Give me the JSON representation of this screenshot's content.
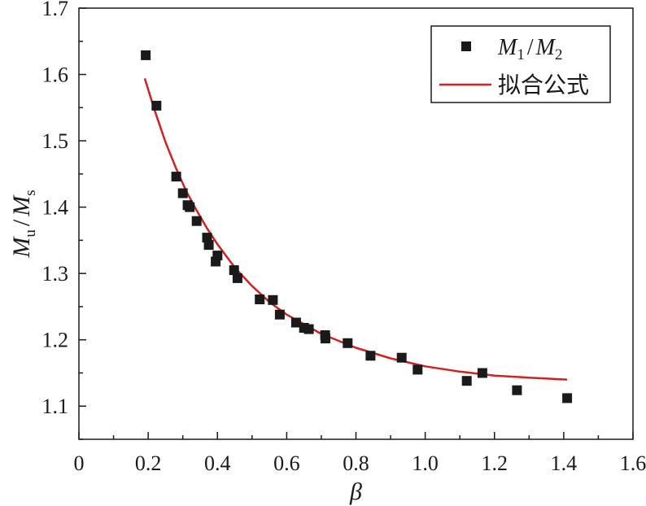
{
  "chart_data": {
    "type": "scatter",
    "xlabel": "β",
    "ylabel": {
      "main": "M",
      "sub1": "u",
      "slash": "/",
      "main2": "M",
      "sub2": "s"
    },
    "xlim": [
      0,
      1.6
    ],
    "ylim": [
      1.05,
      1.7
    ],
    "x_ticks": [
      "0",
      "0.2",
      "0.4",
      "0.6",
      "0.8",
      "1.0",
      "1.2",
      "1.4",
      "1.6"
    ],
    "y_ticks": [
      "1.1",
      "1.2",
      "1.3",
      "1.4",
      "1.5",
      "1.6",
      "1.7"
    ],
    "x_tick_values": [
      0,
      0.2,
      0.4,
      0.6,
      0.8,
      1.0,
      1.2,
      1.4,
      1.6
    ],
    "y_tick_values": [
      1.1,
      1.2,
      1.3,
      1.4,
      1.5,
      1.6,
      1.7
    ],
    "legend_position": "top-right",
    "colors": {
      "points": "#1a1a1a",
      "fit": "#d62020",
      "axis": "#1a1a1a"
    },
    "series": [
      {
        "kind": "points",
        "legend": {
          "main1": "M",
          "sub1": "1",
          "slash": "/",
          "main2": "M",
          "sub2": "2"
        },
        "x": [
          0.193,
          0.224,
          0.281,
          0.3,
          0.314,
          0.32,
          0.34,
          0.37,
          0.375,
          0.395,
          0.4,
          0.448,
          0.458,
          0.522,
          0.56,
          0.58,
          0.627,
          0.65,
          0.664,
          0.711,
          0.712,
          0.776,
          0.842,
          0.932,
          0.978,
          1.12,
          1.165,
          1.265,
          1.41
        ],
        "y": [
          1.629,
          1.553,
          1.446,
          1.421,
          1.403,
          1.4,
          1.379,
          1.354,
          1.343,
          1.318,
          1.327,
          1.305,
          1.293,
          1.261,
          1.26,
          1.238,
          1.226,
          1.218,
          1.216,
          1.207,
          1.202,
          1.195,
          1.176,
          1.173,
          1.155,
          1.138,
          1.15,
          1.124,
          1.112
        ]
      },
      {
        "kind": "line",
        "legend": "拟合公式",
        "x": [
          0.19,
          0.22,
          0.25,
          0.28,
          0.31,
          0.34,
          0.37,
          0.4,
          0.45,
          0.5,
          0.55,
          0.6,
          0.7,
          0.8,
          0.9,
          1.0,
          1.1,
          1.2,
          1.3,
          1.41
        ],
        "y": [
          1.594,
          1.544,
          1.498,
          1.459,
          1.424,
          1.395,
          1.368,
          1.344,
          1.309,
          1.281,
          1.257,
          1.238,
          1.209,
          1.188,
          1.172,
          1.16,
          1.152,
          1.146,
          1.143,
          1.14
        ]
      }
    ]
  }
}
